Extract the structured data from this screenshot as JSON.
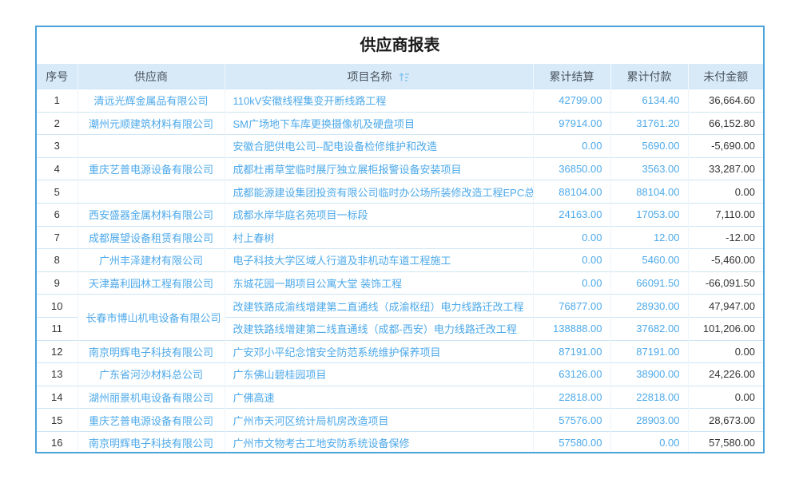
{
  "title": "供应商报表",
  "columns": [
    {
      "label": "序号"
    },
    {
      "label": "供应商"
    },
    {
      "label": "项目名称",
      "sortable": true,
      "sort_icon": "sort-ascending-icon"
    },
    {
      "label": "累计结算"
    },
    {
      "label": "累计付款"
    },
    {
      "label": "未付金额"
    }
  ],
  "rows": [
    {
      "no": "1",
      "supplier": "清远光辉金属品有限公司",
      "project": "110kV安徽线程集变开断线路工程",
      "settled": "42799.00",
      "paid": "6134.40",
      "unpaid": "36,664.60"
    },
    {
      "no": "2",
      "supplier": "潮州元顺建筑材料有限公司",
      "project": "SM广场地下车库更换摄像机及硬盘项目",
      "settled": "97914.00",
      "paid": "31761.20",
      "unpaid": "66,152.80"
    },
    {
      "no": "3",
      "supplier": "",
      "project": "安徽合肥供电公司--配电设备检修维护和改造",
      "settled": "0.00",
      "paid": "5690.00",
      "unpaid": "-5,690.00"
    },
    {
      "no": "4",
      "supplier": "重庆艺普电源设备有限公司",
      "project": "成都杜甫草堂临时展厅独立展柜报警设备安装项目",
      "settled": "36850.00",
      "paid": "3563.00",
      "unpaid": "33,287.00"
    },
    {
      "no": "5",
      "supplier": "",
      "project": "成都能源建设集团投资有限公司临时办公场所装修改造工程EPC总承包",
      "settled": "88104.00",
      "paid": "88104.00",
      "unpaid": "0.00"
    },
    {
      "no": "6",
      "supplier": "西安盛器金属材料有限公司",
      "project": "成都水岸华庭名苑项目一标段",
      "settled": "24163.00",
      "paid": "17053.00",
      "unpaid": "7,110.00"
    },
    {
      "no": "7",
      "supplier": "成都展望设备租赁有限公司",
      "project": "村上春树",
      "settled": "0.00",
      "paid": "12.00",
      "unpaid": "-12.00"
    },
    {
      "no": "8",
      "supplier": "广州丰泽建材有限公司",
      "project": "电子科技大学区域人行道及非机动车道工程施工",
      "settled": "0.00",
      "paaid_note": null,
      "paid": "5460.00",
      "unpaid": "-5,460.00"
    },
    {
      "no": "9",
      "supplier": "天津嘉利园林工程有限公司",
      "project": "东城花园一期项目公寓大堂 装饰工程",
      "settled": "0.00",
      "paid": "66091.50",
      "unpaid": "-66,091.50"
    },
    {
      "no": "10",
      "supplier": "长春市博山机电设备有限公司",
      "supplier_rowspan": 2,
      "project": "改建铁路成渝线增建第二直通线（成渝枢纽）电力线路迁改工程",
      "settled": "76877.00",
      "paid": "28930.00",
      "unpaid": "47,947.00"
    },
    {
      "no": "11",
      "supplier": null,
      "project": "改建铁路线增建第二线直通线（成都-西安）电力线路迁改工程",
      "settled": "138888.00",
      "paid": "37682.00",
      "unpaid": "101,206.00"
    },
    {
      "no": "12",
      "supplier": "南京明辉电子科技有限公司",
      "project": "广安邓小平纪念馆安全防范系统维护保养项目",
      "settled": "87191.00",
      "paid": "87191.00",
      "unpaid": "0.00"
    },
    {
      "no": "13",
      "supplier": "广东省河沙材料总公司",
      "project": "广东佛山碧桂园项目",
      "settled": "63126.00",
      "paid": "38900.00",
      "unpaid": "24,226.00"
    },
    {
      "no": "14",
      "supplier": "湖州丽景机电设备有限公司",
      "project": "广佛高速",
      "settled": "22818.00",
      "paid": "22818.00",
      "unpaid": "0.00"
    },
    {
      "no": "15",
      "supplier": "重庆艺普电源设备有限公司",
      "project": "广州市天河区统计局机房改造项目",
      "settled": "57576.00",
      "paid": "28903.00",
      "unpaid": "28,673.00"
    },
    {
      "no": "16",
      "supplier": "南京明辉电子科技有限公司",
      "project": "广州市文物考古工地安防系统设备保修",
      "settled": "57580.00",
      "paid": "0.00",
      "unpaid": "57,580.00"
    }
  ],
  "colors": {
    "card_border": "#4ba3d9",
    "header_bg": "#d8eaf8",
    "header_text": "#4a545e",
    "link_blue": "#4da9ea",
    "dark_text": "#333333",
    "row_divider": "#cde5f5"
  }
}
